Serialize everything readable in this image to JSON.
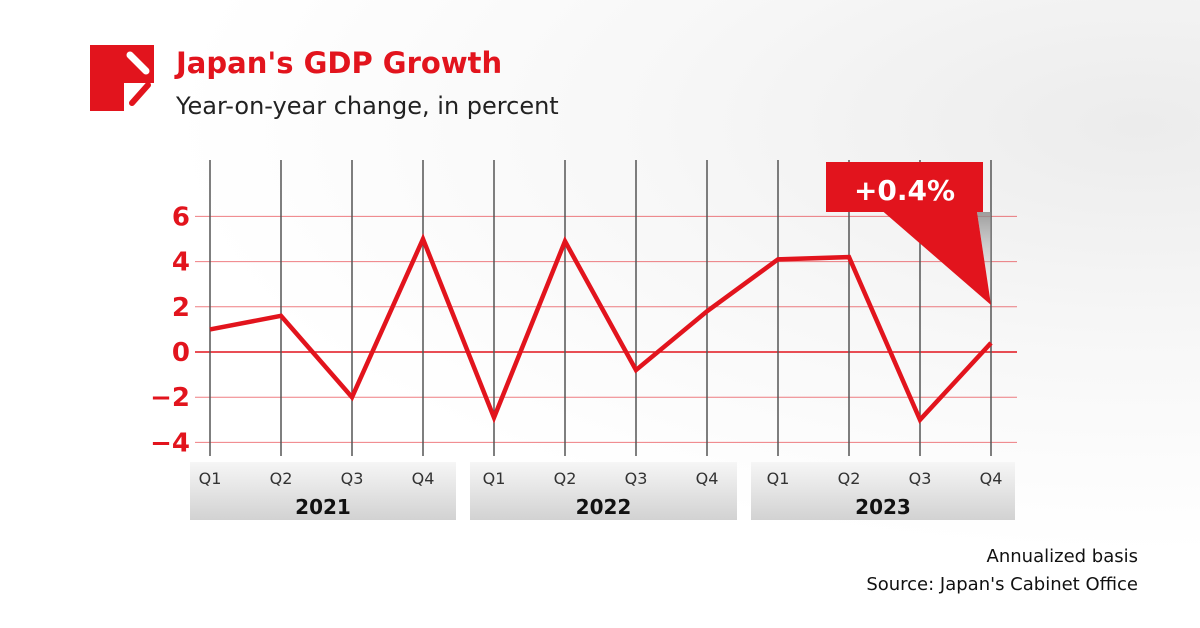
{
  "header": {
    "title": "Japan's GDP Growth",
    "subtitle": "Year-on-year change, in percent",
    "logo": "red-square-logo"
  },
  "footer": {
    "note": "Annualized basis",
    "source": "Source: Japan's Cabinet Office"
  },
  "colors": {
    "accent": "#e2141d",
    "grid": "#555555"
  },
  "callout": {
    "label": "+0.4%"
  },
  "chart_data": {
    "type": "line",
    "title": "Japan's GDP Growth",
    "subtitle": "Year-on-year change, in percent",
    "categories": [
      "Q1",
      "Q2",
      "Q3",
      "Q4",
      "Q1",
      "Q2",
      "Q3",
      "Q4",
      "Q1",
      "Q2",
      "Q3",
      "Q4"
    ],
    "years": [
      "2021",
      "2022",
      "2023"
    ],
    "values": [
      1.0,
      1.6,
      -2.0,
      5.0,
      -2.9,
      4.9,
      -0.8,
      1.8,
      4.1,
      4.2,
      -3.0,
      0.4
    ],
    "yticks": [
      6,
      4,
      2,
      0,
      -2,
      -4
    ],
    "ytick_labels": [
      "6",
      "4",
      "2",
      "0",
      "−2",
      "−4"
    ],
    "ylim": [
      -4.4,
      8.5
    ],
    "grid": true
  }
}
